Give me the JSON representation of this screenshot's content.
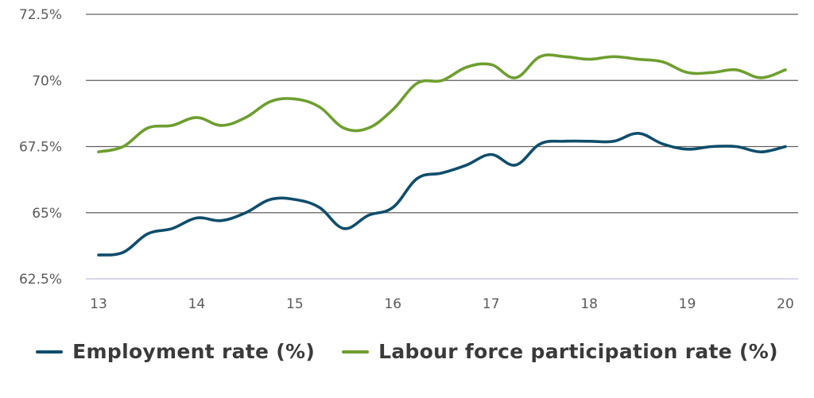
{
  "chart_data": {
    "type": "line",
    "title": "",
    "xlabel": "",
    "ylabel": "",
    "ylim": [
      62.5,
      72.5
    ],
    "xlim": [
      13,
      20
    ],
    "x_ticks": [
      "13",
      "14",
      "15",
      "16",
      "17",
      "18",
      "19",
      "20"
    ],
    "y_ticks": [
      "72.5%",
      "70%",
      "67.5%",
      "65%",
      "62.5%"
    ],
    "y_tick_values": [
      72.5,
      70,
      67.5,
      65,
      62.5
    ],
    "grid": true,
    "legend_position": "bottom",
    "series": [
      {
        "name": "Employment rate (%)",
        "color": "#0f4d6b",
        "x": [
          13.0,
          13.25,
          13.5,
          13.75,
          14.0,
          14.25,
          14.5,
          14.75,
          15.0,
          15.25,
          15.5,
          15.75,
          16.0,
          16.25,
          16.5,
          16.75,
          17.0,
          17.25,
          17.5,
          17.75,
          18.0,
          18.25,
          18.5,
          18.75,
          19.0,
          19.25,
          19.5,
          19.75,
          20.0
        ],
        "values": [
          63.4,
          63.5,
          64.2,
          64.4,
          64.8,
          64.7,
          65.0,
          65.5,
          65.5,
          65.2,
          64.4,
          64.9,
          65.2,
          66.3,
          66.5,
          66.8,
          67.2,
          66.8,
          67.6,
          67.7,
          67.7,
          67.7,
          68.0,
          67.6,
          67.4,
          67.5,
          67.5,
          67.3,
          67.5
        ]
      },
      {
        "name": "Labour force participation rate (%)",
        "color": "#6e9e2f",
        "x": [
          13.0,
          13.25,
          13.5,
          13.75,
          14.0,
          14.25,
          14.5,
          14.75,
          15.0,
          15.25,
          15.5,
          15.75,
          16.0,
          16.25,
          16.5,
          16.75,
          17.0,
          17.25,
          17.5,
          17.75,
          18.0,
          18.25,
          18.5,
          18.75,
          19.0,
          19.25,
          19.5,
          19.75,
          20.0
        ],
        "values": [
          67.3,
          67.5,
          68.2,
          68.3,
          68.6,
          68.3,
          68.6,
          69.2,
          69.3,
          69.0,
          68.2,
          68.2,
          68.9,
          69.9,
          70.0,
          70.5,
          70.6,
          70.1,
          70.9,
          70.9,
          70.8,
          70.9,
          70.8,
          70.7,
          70.3,
          70.3,
          70.4,
          70.1,
          70.4
        ]
      }
    ]
  },
  "colors": {
    "grid": "#5f5f5f",
    "baseline": "#c9cbe2",
    "tick_text": "#5a5a5a"
  }
}
